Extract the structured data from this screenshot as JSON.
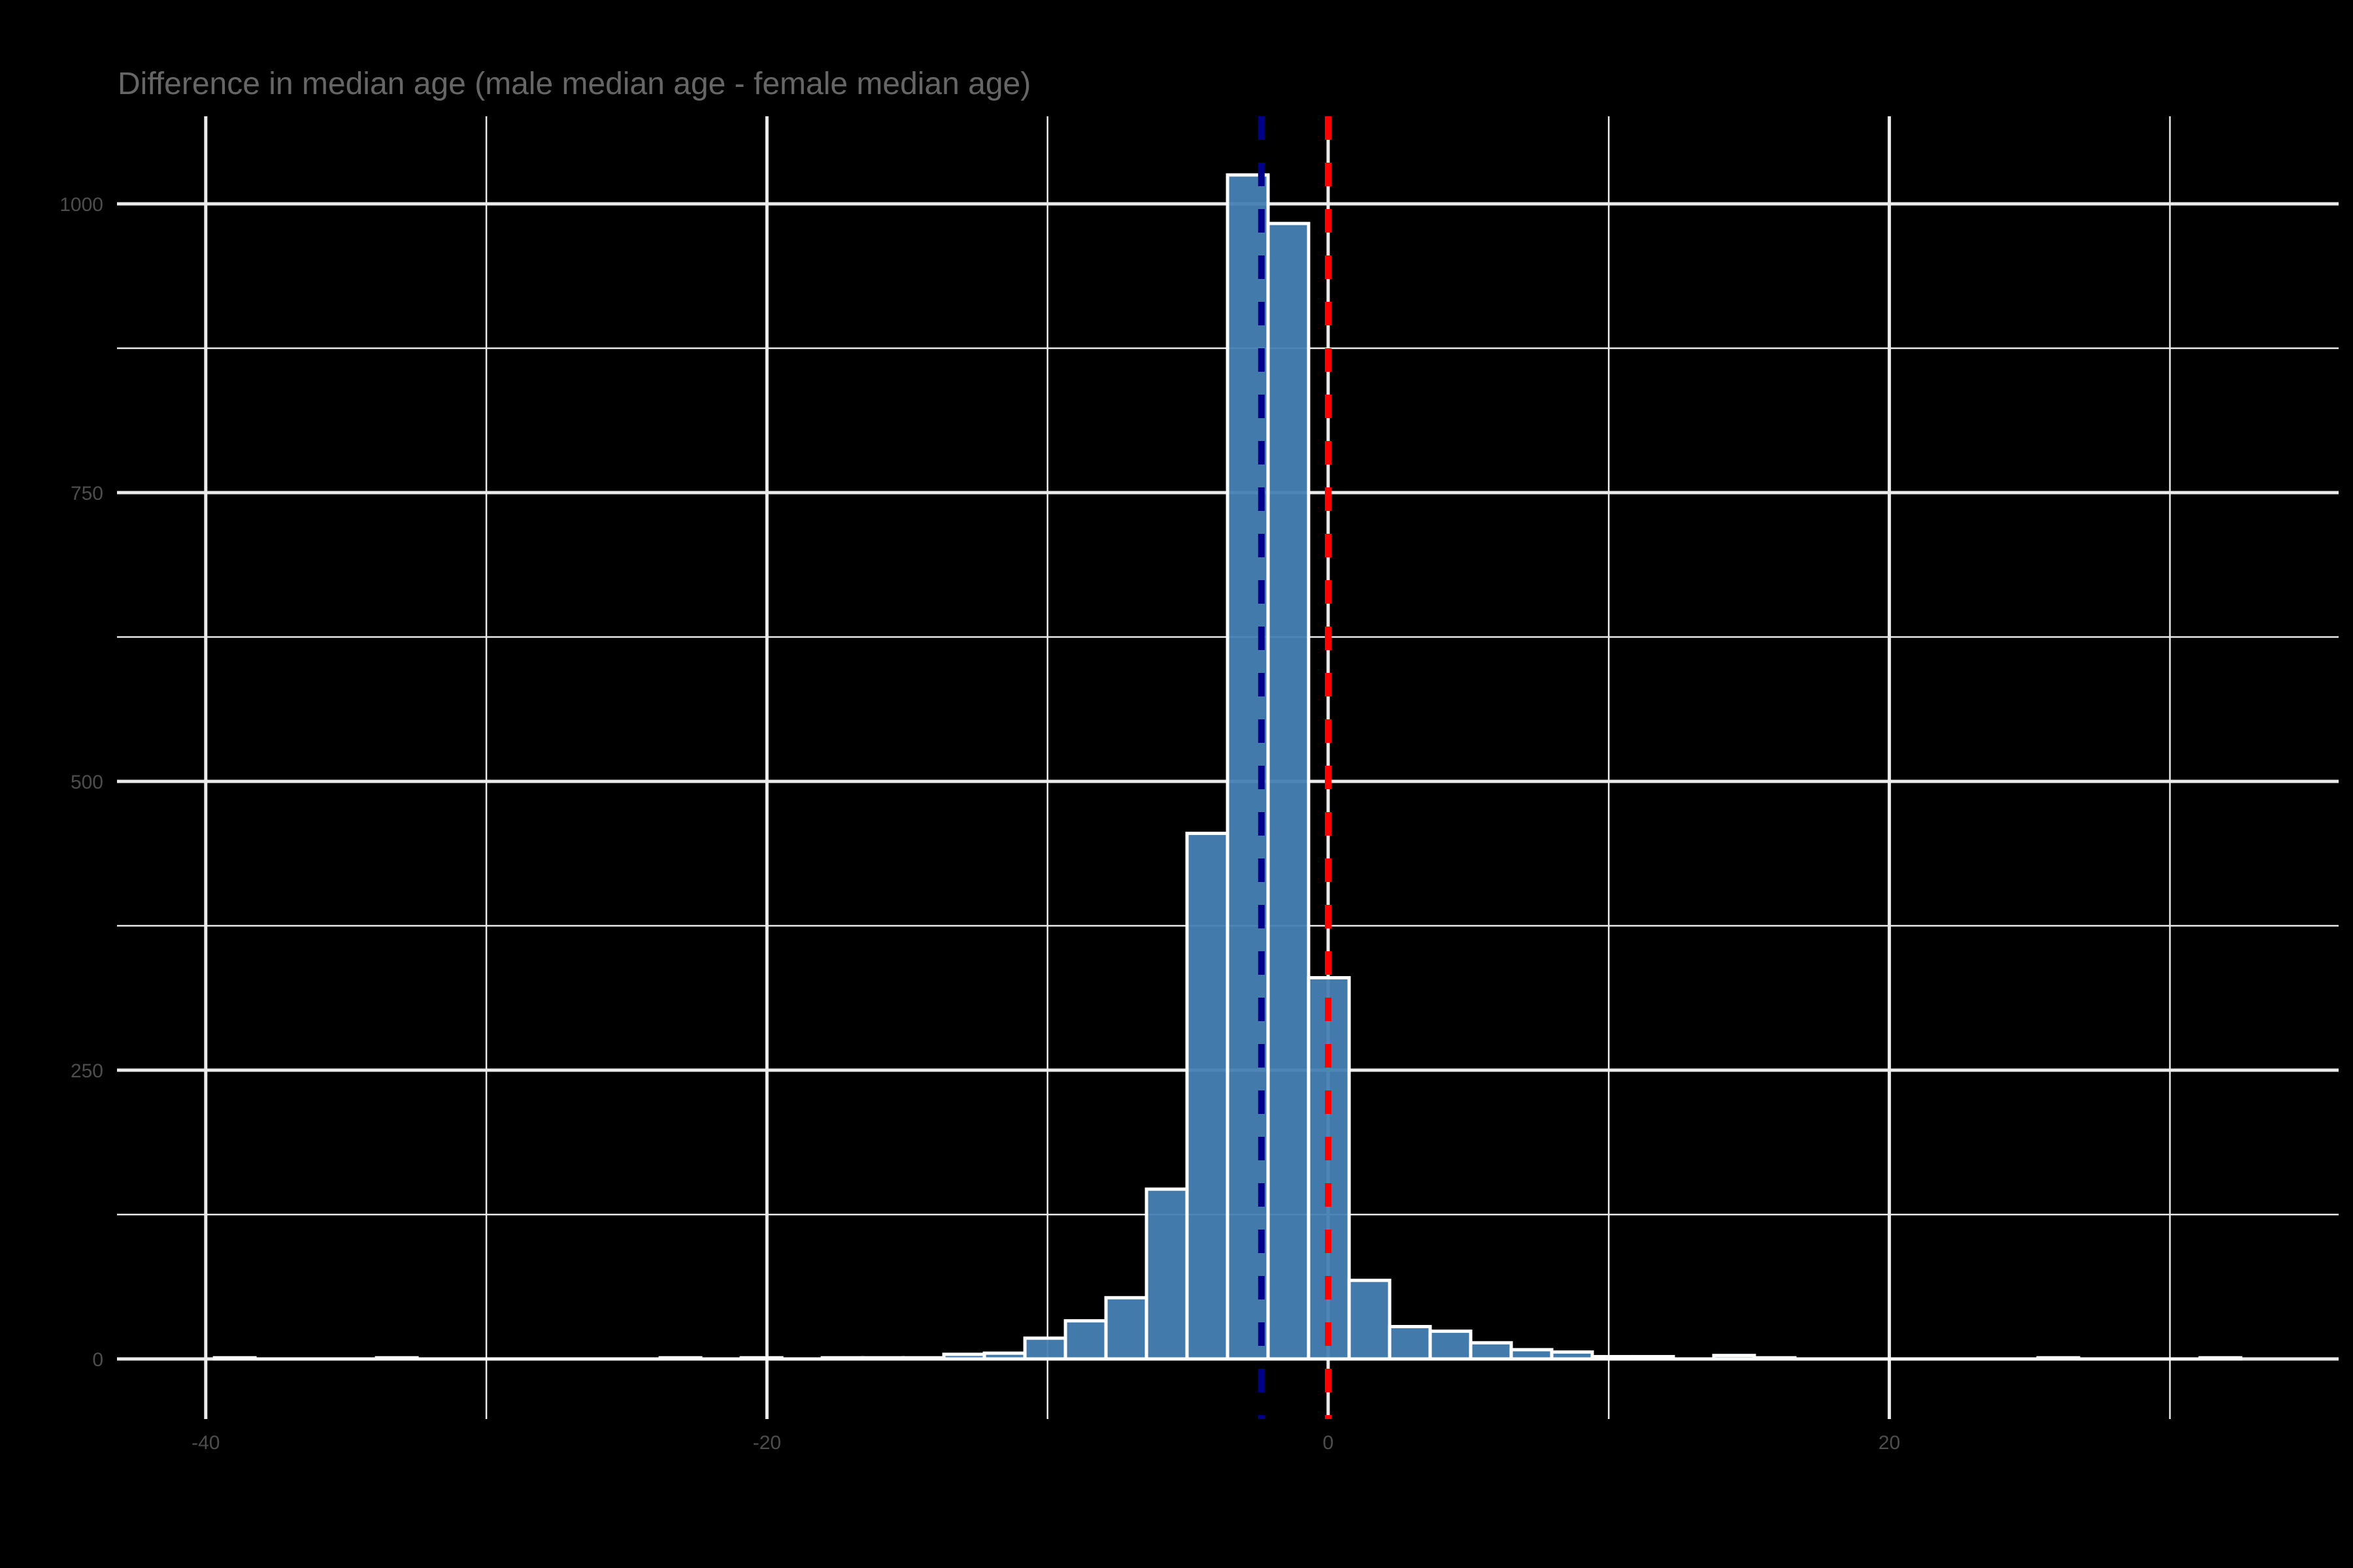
{
  "chart_data": {
    "type": "bar",
    "subtype": "histogram",
    "title": "Difference in median age (male median age - female median age)",
    "xlabel": "",
    "ylabel": "",
    "xlim": [
      -43.2,
      36.0
    ],
    "ylim": [
      -52,
      1076
    ],
    "x_ticks": [
      -40,
      -20,
      0,
      20
    ],
    "x_tick_labels": [
      "-40",
      "-20",
      "0",
      "20"
    ],
    "x_minor_gridlines": [
      -30,
      -10,
      10,
      30
    ],
    "y_ticks": [
      0,
      250,
      500,
      750,
      1000
    ],
    "y_tick_labels": [
      "0",
      "250",
      "500",
      "750",
      "1000"
    ],
    "y_minor_gridlines": [
      125,
      375,
      625,
      875
    ],
    "grid": true,
    "legend": "none",
    "bin_start": -39.69,
    "bin_width": 1.4442,
    "counts": [
      1,
      0,
      0,
      0,
      1,
      0,
      0,
      0,
      0,
      0,
      0,
      1,
      0,
      1,
      0,
      1,
      1,
      1,
      4,
      5,
      18,
      33,
      53,
      147,
      455,
      1025,
      983,
      330,
      68,
      28,
      24,
      14,
      8,
      6,
      2,
      2,
      0,
      3,
      1,
      0,
      0,
      0,
      0,
      0,
      0,
      1,
      0,
      0,
      0,
      1
    ],
    "bar_fill": "#4682B4",
    "bar_outline": "#FFFFFF",
    "reference_lines": [
      {
        "name": "median difference",
        "x": -2.38,
        "color": "#00008B",
        "style": "dashed"
      },
      {
        "name": "zero",
        "x": 0,
        "color": "#FF0000",
        "style": "dashed"
      }
    ]
  },
  "colors": {
    "background": "#000000",
    "grid": "#EBEBEB",
    "title": "#666666",
    "tick_text": "#4D4D4D"
  }
}
